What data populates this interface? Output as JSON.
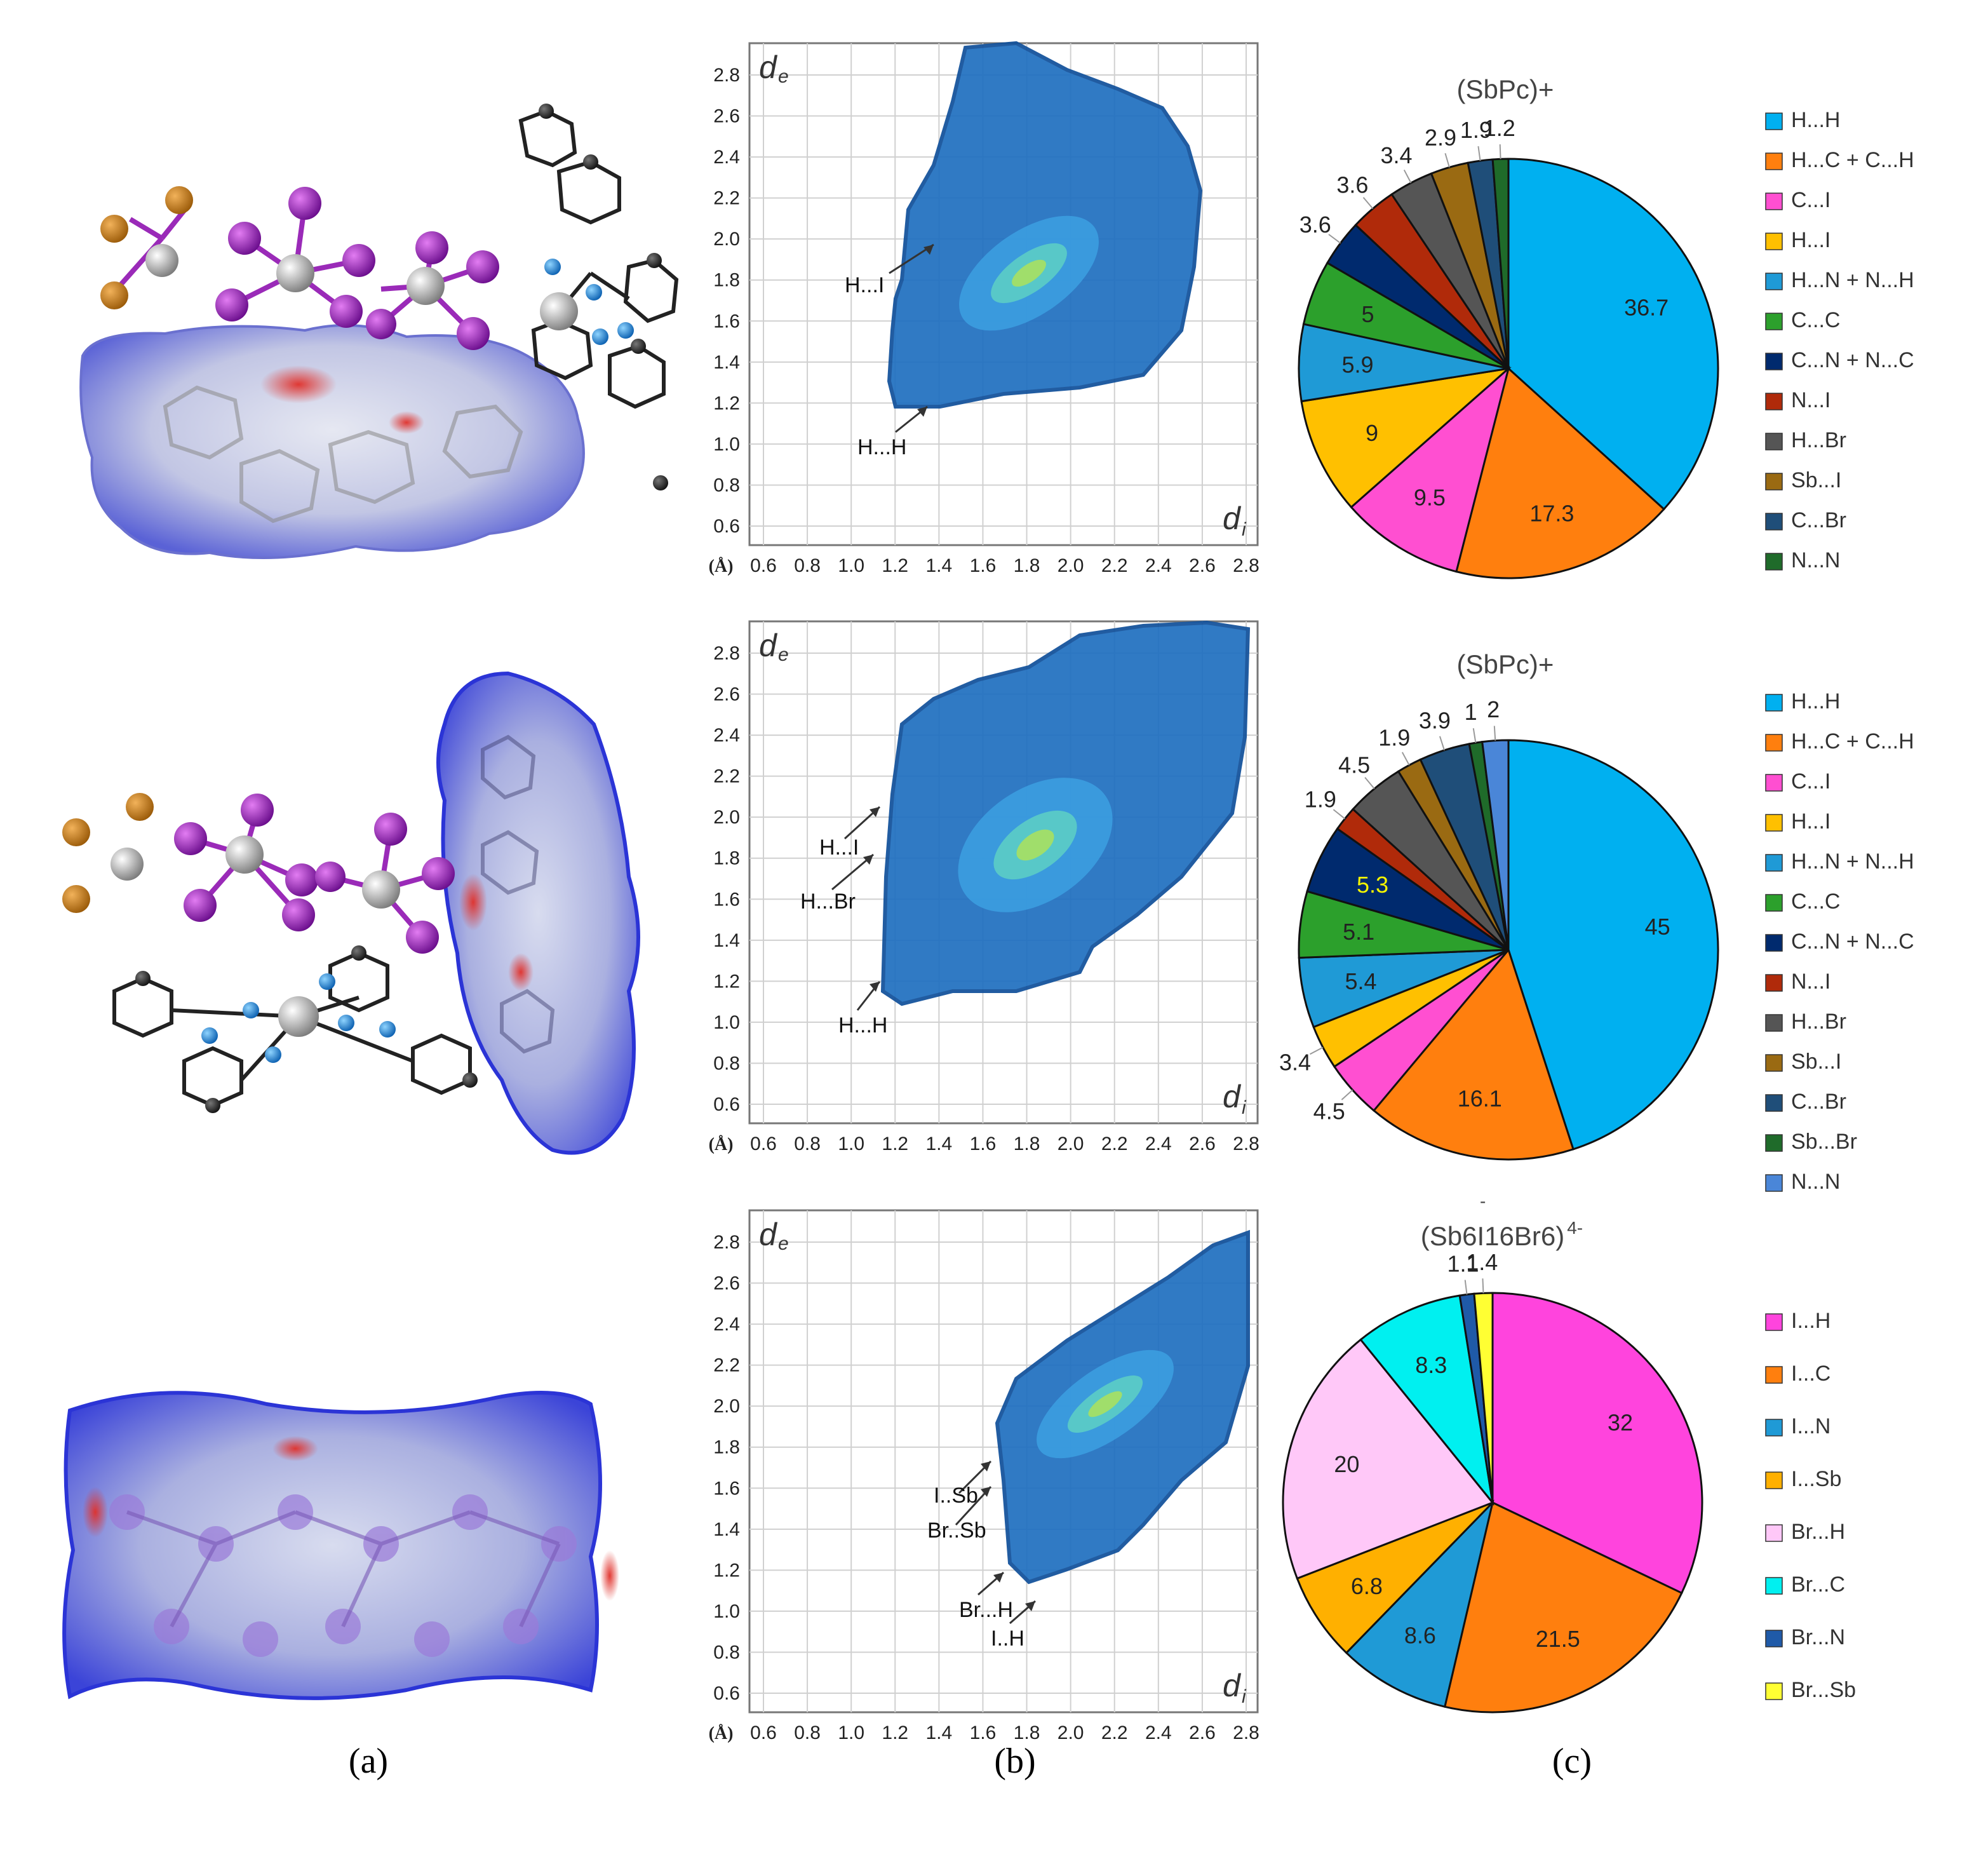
{
  "panel_labels": {
    "a": "(a)",
    "b": "(b)",
    "c": "(c)"
  },
  "fingerprint_axes": {
    "ticks": [
      "0.6",
      "0.8",
      "1.0",
      "1.2",
      "1.4",
      "1.6",
      "1.8",
      "2.0",
      "2.2",
      "2.4",
      "2.6",
      "2.8"
    ],
    "unit_label": "(Å)",
    "x_label": "d",
    "x_label_sub": "i",
    "y_label": "d",
    "y_label_sub": "e"
  },
  "fingerprints": [
    {
      "annotations": [
        "H...I",
        "H...H"
      ]
    },
    {
      "annotations": [
        "H...I",
        "H...Br",
        "H...H"
      ]
    },
    {
      "annotations": [
        "I..Sb",
        "Br..Sb",
        "Br...H",
        "I..H"
      ]
    }
  ],
  "chart_data": [
    {
      "type": "pie",
      "title": "(SbPc)+",
      "legend": [
        "H...H",
        "H...C + C...H",
        "C...I",
        "H...I",
        "H...N + N...H",
        "C...C",
        "C...N + N...C",
        "N...I",
        "H...Br",
        "Sb...I",
        "C...Br",
        "N...N"
      ],
      "values": [
        36.7,
        17.3,
        9.5,
        9,
        5.9,
        5,
        3.6,
        3.6,
        3.4,
        2.9,
        1.9,
        1.2
      ],
      "labels": [
        "36.7",
        "17.3",
        "9.5",
        "9",
        "5.9",
        "5",
        "3.6",
        "3.6",
        "3.4",
        "2.9",
        "1.9",
        "1.2"
      ],
      "colors": [
        "#00b0f0",
        "#ff7f0e",
        "#ff4fd1",
        "#ffc000",
        "#1f9ad6",
        "#2ca02c",
        "#002a6e",
        "#b02a0a",
        "#555555",
        "#9a6a12",
        "#1f4e79",
        "#1f6b2a"
      ]
    },
    {
      "type": "pie",
      "title": "(SbPc)+",
      "legend": [
        "H...H",
        "H...C + C...H",
        "C...I",
        "H...I",
        "H...N + N...H",
        "C...C",
        "C...N + N...C",
        "N...I",
        "H...Br",
        "Sb...I",
        "C...Br",
        "Sb...Br",
        "N...N"
      ],
      "values": [
        45,
        16.1,
        4.5,
        3.4,
        5.4,
        5.1,
        5.3,
        1.9,
        4.5,
        1.9,
        3.9,
        1,
        2
      ],
      "labels": [
        "45",
        "16.1",
        "4.5",
        "3.4",
        "5.4",
        "5.1",
        "5.3",
        "1.9",
        "4.5",
        "1.9",
        "3.9",
        "1",
        "2"
      ],
      "colors": [
        "#00b0f0",
        "#ff7f0e",
        "#ff4fd1",
        "#ffc000",
        "#1f9ad6",
        "#2ca02c",
        "#002a6e",
        "#b02a0a",
        "#555555",
        "#9a6a12",
        "#1f4e79",
        "#1f6b2a",
        "#4a86d8"
      ]
    },
    {
      "type": "pie",
      "title": "(Sb6I16Br6)",
      "title_sup": "4-",
      "title_overmark": "-",
      "legend": [
        "I...H",
        "I...C",
        "I...N",
        "I...Sb",
        "Br...H",
        "Br...C",
        "Br...N",
        "Br...Sb"
      ],
      "values": [
        32,
        21.5,
        8.6,
        6.8,
        20,
        8.3,
        1.1,
        1.4
      ],
      "labels": [
        "32",
        "21.5",
        "8.6",
        "6.8",
        "20",
        "8.3",
        "1.1",
        "1.4"
      ],
      "colors": [
        "#ff44dd",
        "#ff7f0e",
        "#1f9ad6",
        "#ffb000",
        "#ffc8f8",
        "#00f0f0",
        "#1f5aa8",
        "#ffff33"
      ]
    }
  ]
}
